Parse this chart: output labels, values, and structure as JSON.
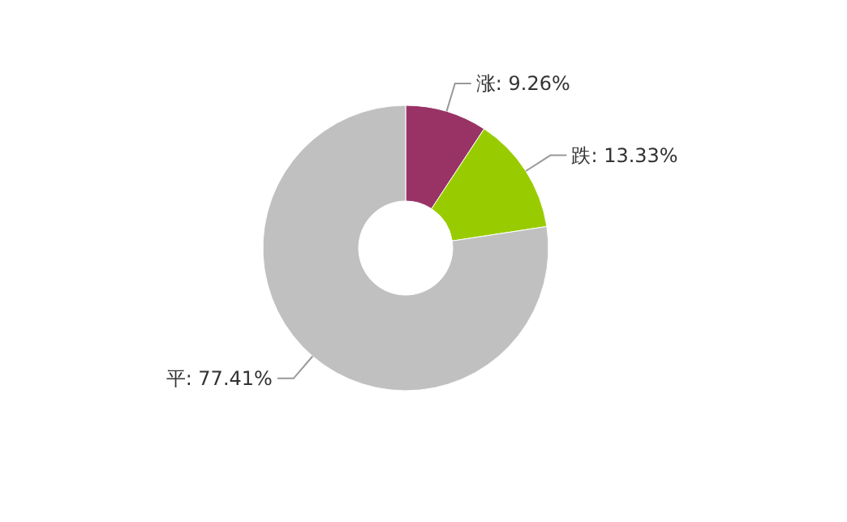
{
  "chart_data": {
    "type": "donut",
    "categories": [
      "涨",
      "跌",
      "平"
    ],
    "values": [
      9.26,
      13.33,
      77.41
    ],
    "colors": [
      "#993366",
      "#99cc00",
      "#c0c0c0"
    ],
    "value_labels": [
      "9.26%",
      "13.33%",
      "77.41%"
    ]
  }
}
